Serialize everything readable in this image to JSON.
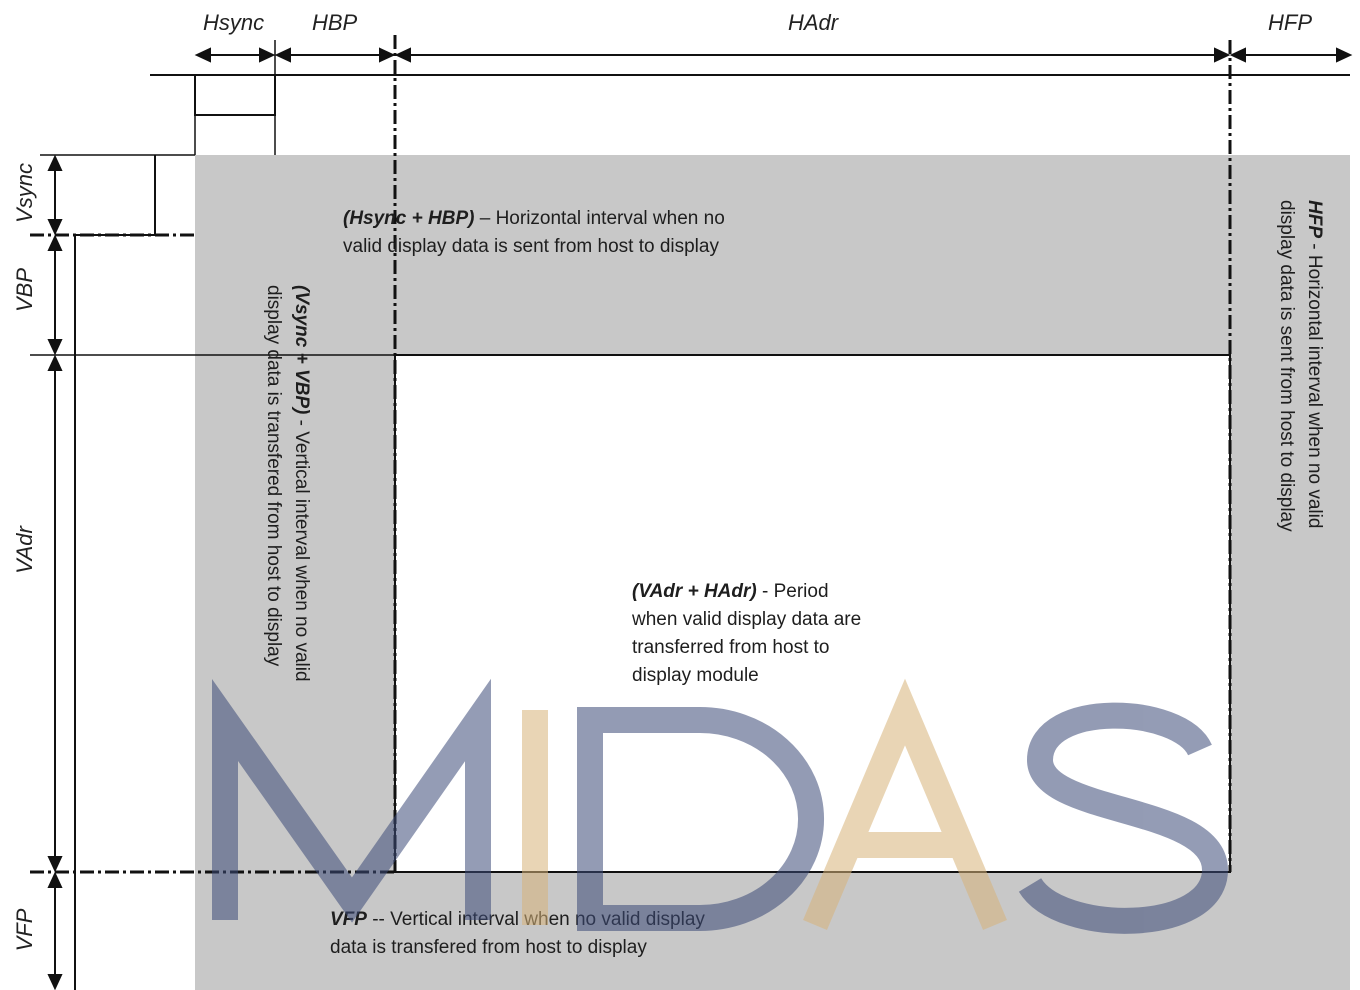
{
  "labels": {
    "hsync": "Hsync",
    "hbp": "HBP",
    "hadr": "HAdr",
    "hfp": "HFP",
    "vsync": "Vsync",
    "vbp": "VBP",
    "vadr": "VAdr",
    "vfp": "VFP"
  },
  "descriptions": {
    "top": {
      "term": "(Hsync + HBP)",
      "text_line1": " – Horizontal interval when no",
      "text_line2": "valid display data is sent from host to display"
    },
    "left": {
      "term": "(Vsync + VBP)",
      "text_line1": " - Vertical interval when no valid",
      "text_line2": "display data is transfered from host to display"
    },
    "right": {
      "term": "HFP",
      "text_line1": " - Horizontal interval when no valid",
      "text_line2": "display data is sent from host to display"
    },
    "center": {
      "term": "(VAdr + HAdr)",
      "text_line1": " - Period",
      "text_line2": "when valid display data are",
      "text_line3": "transferred from host to",
      "text_line4": "display module"
    },
    "bottom": {
      "term": "VFP",
      "text_line1": " -- Vertical interval when no valid display",
      "text_line2": "data is transfered from host to display"
    }
  },
  "watermark": {
    "text": "MIDAS",
    "color_dark": "#3c4a78",
    "color_light": "#d8b47a"
  },
  "colors": {
    "blanking_gray": "#c8c8c8",
    "active_white": "#ffffff",
    "line": "#111111"
  }
}
